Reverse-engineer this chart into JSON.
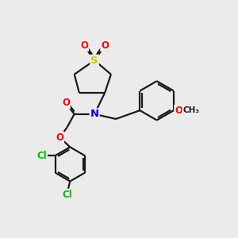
{
  "background_color": "#ebebeb",
  "bond_color": "#1a1a1a",
  "atom_colors": {
    "S": "#cccc00",
    "O": "#ff0000",
    "N": "#0000ff",
    "Cl": "#00bb00",
    "C": "#1a1a1a"
  },
  "figsize": [
    3.0,
    3.0
  ],
  "dpi": 100,
  "lw": 1.6
}
